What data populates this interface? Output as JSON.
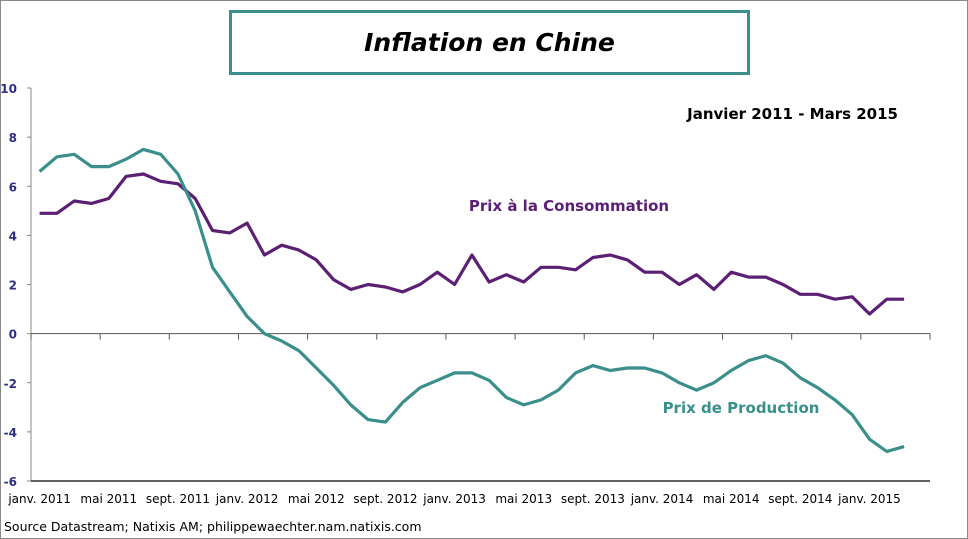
{
  "chart_data": {
    "type": "line",
    "title": "Inflation en Chine",
    "subtitle": "Janvier 2011 - Mars 2015",
    "source": "Source Datastream; Natixis AM; philippewaechter.nam.natixis.com",
    "ylim": [
      -6,
      10
    ],
    "yticks": [
      -6,
      -4,
      -2,
      0,
      2,
      4,
      6,
      8,
      10
    ],
    "xtick_labels": [
      "janv. 2011",
      "mai 2011",
      "sept. 2011",
      "janv. 2012",
      "mai 2012",
      "sept. 2012",
      "janv. 2013",
      "mai 2013",
      "sept. 2013",
      "janv. 2014",
      "mai 2014",
      "sept. 2014",
      "janv. 2015"
    ],
    "grid": false,
    "series": [
      {
        "name": "Prix à la Consommation",
        "color": "#5b1f74",
        "values": [
          4.9,
          4.9,
          5.4,
          5.3,
          5.5,
          6.4,
          6.5,
          6.2,
          6.1,
          5.5,
          4.2,
          4.1,
          4.5,
          3.2,
          3.6,
          3.4,
          3.0,
          2.2,
          1.8,
          2.0,
          1.9,
          1.7,
          2.0,
          2.5,
          2.0,
          3.2,
          2.1,
          2.4,
          2.1,
          2.7,
          2.7,
          2.6,
          3.1,
          3.2,
          3.0,
          2.5,
          2.5,
          2.0,
          2.4,
          1.8,
          2.5,
          2.3,
          2.3,
          2.0,
          1.6,
          1.6,
          1.4,
          1.5,
          0.8,
          1.4,
          1.4
        ]
      },
      {
        "name": "Prix de Production",
        "color": "#3a8f8a",
        "values": [
          6.6,
          7.2,
          7.3,
          6.8,
          6.8,
          7.1,
          7.5,
          7.3,
          6.5,
          5.0,
          2.7,
          1.7,
          0.7,
          0.0,
          -0.3,
          -0.7,
          -1.4,
          -2.1,
          -2.9,
          -3.5,
          -3.6,
          -2.8,
          -2.2,
          -1.9,
          -1.6,
          -1.6,
          -1.9,
          -2.6,
          -2.9,
          -2.7,
          -2.3,
          -1.6,
          -1.3,
          -1.5,
          -1.4,
          -1.4,
          -1.6,
          -2.0,
          -2.3,
          -2.0,
          -1.5,
          -1.1,
          -0.9,
          -1.2,
          -1.8,
          -2.2,
          -2.7,
          -3.3,
          -4.3,
          -4.8,
          -4.6
        ]
      }
    ]
  }
}
